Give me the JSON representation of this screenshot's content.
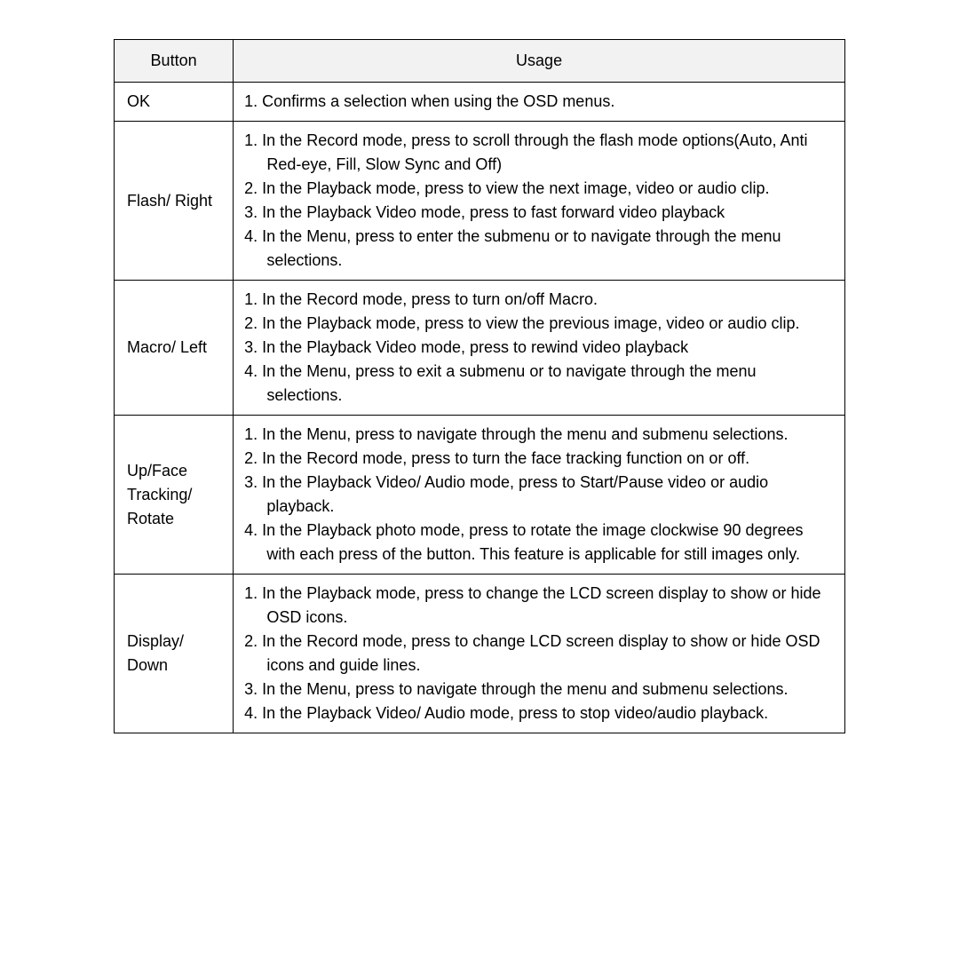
{
  "table": {
    "header_bg": "#f2f2f2",
    "border_color": "#000000",
    "font_size": 18,
    "columns": {
      "button": "Button",
      "usage": "Usage"
    },
    "rows": [
      {
        "button": "OK",
        "usage": [
          "1. Confirms a selection when using the OSD menus."
        ]
      },
      {
        "button": "Flash/ Right",
        "usage": [
          "1. In the Record mode, press to scroll through the flash mode options(Auto, Anti Red-eye, Fill, Slow Sync and Off)",
          "2. In the Playback mode, press to view the next image, video or audio clip.",
          "3. In the Playback Video mode, press to fast forward video playback",
          "4. In the Menu, press to enter the submenu or to navigate through the menu selections."
        ]
      },
      {
        "button": "Macro/ Left",
        "usage": [
          "1. In the Record mode, press to turn on/off Macro.",
          "2. In the Playback mode, press to view the previous image, video or audio clip.",
          "3. In the Playback Video mode, press to rewind video playback",
          "4. In the Menu, press to exit a submenu or to navigate through the menu selections."
        ]
      },
      {
        "button": "Up/Face Tracking/ Rotate",
        "usage": [
          "1. In the Menu, press to navigate through the menu and submenu selections.",
          "2. In the Record mode, press to turn the face tracking function on or off.",
          "3. In the Playback Video/ Audio mode, press to Start/Pause video or audio playback.",
          "4. In the Playback photo mode, press to rotate the image clockwise 90 degrees with each press of the button. This feature is applicable for still images only."
        ]
      },
      {
        "button": "Display/ Down",
        "usage": [
          "1. In the Playback mode, press to change the LCD screen display to show or hide OSD icons.",
          "2. In the Record mode, press to change LCD screen display to show or hide OSD icons and guide lines.",
          "3. In the Menu, press to navigate through the menu and submenu selections.",
          "4. In the Playback Video/ Audio mode, press to stop video/audio playback."
        ]
      }
    ]
  }
}
